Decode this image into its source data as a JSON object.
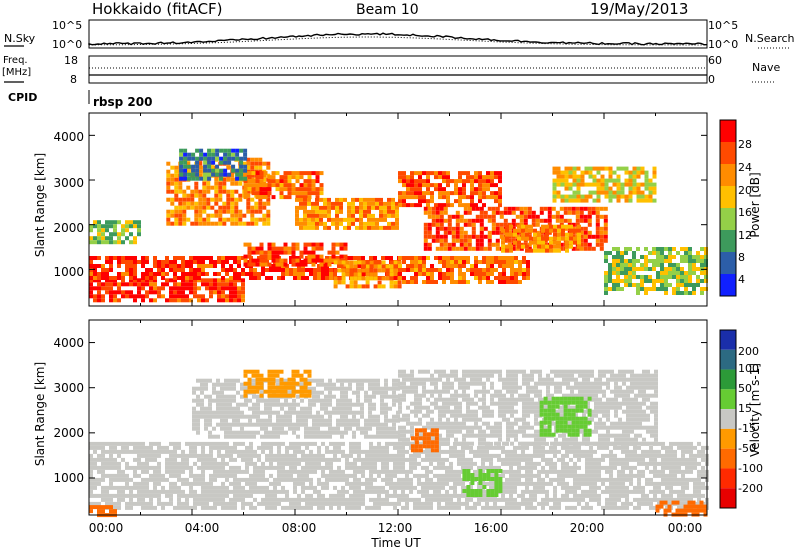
{
  "header": {
    "title": "Hokkaido (fitACF)",
    "beam": "Beam 10",
    "date": "19/May/2013"
  },
  "top_panels": {
    "nsky_label": "N.Sky",
    "nsearch_label": "N.Search",
    "exp_top": "10^5",
    "exp_bottom": "10^0",
    "freq_label": "Freq.",
    "freq_unit": "[MHz]",
    "freq_ticks": [
      "18",
      "8"
    ],
    "nave_label": "Nave",
    "nave_ticks": [
      "60",
      "0"
    ],
    "cpid_label": "CPID",
    "cpid_value": "rbsp 200"
  },
  "power_colorbar": {
    "label": "Power [dB]",
    "ticks": [
      "28",
      "24",
      "20",
      "16",
      "12",
      "8",
      "4"
    ],
    "colors": [
      "#ff0000",
      "#ff4a00",
      "#ff8c00",
      "#ffc000",
      "#94d048",
      "#3d9a5c",
      "#2c5ea8",
      "#1020ff"
    ]
  },
  "velocity_colorbar": {
    "label": "Velocity [m s-1]",
    "ticks": [
      "200",
      "100",
      "50",
      "15",
      "-15",
      "-50",
      "-100",
      "-200"
    ],
    "colors": [
      "#1a2eaa",
      "#2c6a82",
      "#2c9a38",
      "#66cc33",
      "#c8c8c4",
      "#ff9a00",
      "#ff6a00",
      "#ff2a00",
      "#e80000"
    ]
  },
  "axes": {
    "ylabel": "Slant Range [km]",
    "xlabel": "Time UT",
    "yticks": [
      "1000",
      "2000",
      "3000",
      "4000"
    ],
    "xticks": [
      "00:00",
      "04:00",
      "08:00",
      "12:00",
      "16:00",
      "20:00",
      "00:00"
    ]
  },
  "chart_data": [
    {
      "type": "heatmap",
      "title": "Power",
      "xlabel": "Time UT",
      "ylabel": "Slant Range [km]",
      "xlim": [
        0,
        24
      ],
      "ylim": [
        180,
        4500
      ],
      "colorbar_label": "Power [dB]",
      "color_scale": [
        4,
        8,
        12,
        16,
        20,
        24,
        28
      ],
      "regions": [
        {
          "x": [
            0,
            6
          ],
          "y": [
            300,
            800
          ],
          "value": 26
        },
        {
          "x": [
            0,
            12
          ],
          "y": [
            800,
            1300
          ],
          "value": 26
        },
        {
          "x": [
            3,
            7
          ],
          "y": [
            2000,
            3500
          ],
          "value": 20
        },
        {
          "x": [
            6,
            10
          ],
          "y": [
            1100,
            1600
          ],
          "value": 24
        },
        {
          "x": [
            6,
            9
          ],
          "y": [
            2600,
            3200
          ],
          "value": 22
        },
        {
          "x": [
            8,
            12
          ],
          "y": [
            1900,
            2600
          ],
          "value": 20
        },
        {
          "x": [
            9.5,
            12
          ],
          "y": [
            600,
            1200
          ],
          "value": 20
        },
        {
          "x": [
            12,
            17
          ],
          "y": [
            700,
            1300
          ],
          "value": 22
        },
        {
          "x": [
            12,
            16
          ],
          "y": [
            2400,
            3200
          ],
          "value": 24
        },
        {
          "x": [
            13,
            20
          ],
          "y": [
            1500,
            2400
          ],
          "value": 24
        },
        {
          "x": [
            16,
            19
          ],
          "y": [
            1400,
            2000
          ],
          "value": 20
        },
        {
          "x": [
            18,
            22
          ],
          "y": [
            2500,
            3300
          ],
          "value": 16
        },
        {
          "x": [
            20,
            24
          ],
          "y": [
            500,
            1500
          ],
          "value": 12
        },
        {
          "x": [
            0,
            2
          ],
          "y": [
            1600,
            2100
          ],
          "value": 12
        },
        {
          "x": [
            3.5,
            6
          ],
          "y": [
            3000,
            3700
          ],
          "value": 6
        }
      ]
    },
    {
      "type": "heatmap",
      "title": "Velocity",
      "xlabel": "Time UT",
      "ylabel": "Slant Range [km]",
      "xlim": [
        0,
        24
      ],
      "ylim": [
        180,
        4500
      ],
      "colorbar_label": "Velocity [m s-1]",
      "color_scale": [
        200,
        100,
        50,
        15,
        -15,
        -50,
        -100,
        -200
      ],
      "regions": [
        {
          "x": [
            0,
            24
          ],
          "y": [
            300,
            1800
          ],
          "value": 0
        },
        {
          "x": [
            4,
            12
          ],
          "y": [
            1900,
            3200
          ],
          "value": 0
        },
        {
          "x": [
            12,
            22
          ],
          "y": [
            1800,
            3400
          ],
          "value": 0
        },
        {
          "x": [
            6,
            8.5
          ],
          "y": [
            2800,
            3400
          ],
          "value": -40
        },
        {
          "x": [
            12.5,
            13.5
          ],
          "y": [
            1600,
            2100
          ],
          "value": -60
        },
        {
          "x": [
            17.5,
            19.5
          ],
          "y": [
            2000,
            2800
          ],
          "value": 30
        },
        {
          "x": [
            14.5,
            16
          ],
          "y": [
            600,
            1200
          ],
          "value": 30
        },
        {
          "x": [
            22,
            24
          ],
          "y": [
            200,
            500
          ],
          "value": -60
        },
        {
          "x": [
            0,
            1
          ],
          "y": [
            200,
            400
          ],
          "value": -60
        }
      ]
    }
  ]
}
